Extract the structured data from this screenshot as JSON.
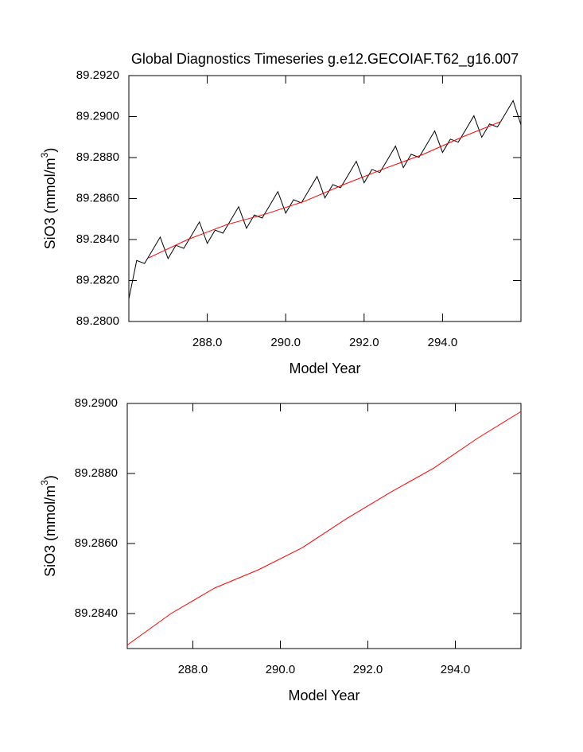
{
  "chart_data": [
    {
      "type": "line",
      "title": "Global Diagnostics Timeseries g.e12.GECOIAF.T62_g16.007",
      "xlabel": "Model Year",
      "ylabel": [
        "SiO3 (mmol/m",
        "3",
        ")"
      ],
      "xlim": [
        286.0,
        296.0
      ],
      "ylim": [
        89.28,
        89.292
      ],
      "xticks": [
        {
          "value": 288,
          "label": "288.0"
        },
        {
          "value": 290,
          "label": "290.0"
        },
        {
          "value": 292,
          "label": "292.0"
        },
        {
          "value": 294,
          "label": "294.0"
        }
      ],
      "yticks": [
        {
          "value": 89.28,
          "label": "89.2800"
        },
        {
          "value": 89.282,
          "label": "89.2820"
        },
        {
          "value": 89.284,
          "label": "89.2840"
        },
        {
          "value": 89.286,
          "label": "89.2860"
        },
        {
          "value": 89.288,
          "label": "89.2880"
        },
        {
          "value": 89.29,
          "label": "89.2900"
        },
        {
          "value": 89.292,
          "label": "89.2920"
        }
      ],
      "series": [
        {
          "color": "#000000",
          "x": [
            286.0,
            286.2,
            286.4,
            286.6,
            286.8,
            287.0,
            287.2,
            287.4,
            287.6,
            287.8,
            288.0,
            288.2,
            288.4,
            288.6,
            288.8,
            289.0,
            289.2,
            289.4,
            289.6,
            289.8,
            290.0,
            290.2,
            290.4,
            290.6,
            290.8,
            291.0,
            291.2,
            291.4,
            291.6,
            291.8,
            292.0,
            292.2,
            292.4,
            292.6,
            292.8,
            293.0,
            293.2,
            293.4,
            293.6,
            293.8,
            294.0,
            294.2,
            294.4,
            294.6,
            294.8,
            295.0,
            295.2,
            295.4,
            295.6,
            295.8,
            296.0
          ],
          "values": [
            89.2811,
            89.28298,
            89.28283,
            89.28347,
            89.28412,
            89.28307,
            89.28372,
            89.28357,
            89.28421,
            89.28486,
            89.28381,
            89.28446,
            89.28431,
            89.28495,
            89.2856,
            89.28455,
            89.2852,
            89.28505,
            89.28569,
            89.28634,
            89.28529,
            89.28594,
            89.28579,
            89.28643,
            89.28708,
            89.28603,
            89.28668,
            89.28653,
            89.28717,
            89.28782,
            89.28677,
            89.28742,
            89.28727,
            89.28791,
            89.28856,
            89.28751,
            89.28816,
            89.28801,
            89.28865,
            89.2893,
            89.28825,
            89.2889,
            89.28875,
            89.28939,
            89.29004,
            89.28899,
            89.28964,
            89.28949,
            89.29013,
            89.29078,
            89.2896
          ]
        },
        {
          "color": "#ff0000",
          "x": [
            286.5,
            287.5,
            288.5,
            289.5,
            290.5,
            291.5,
            292.5,
            293.5,
            294.5,
            295.5
          ],
          "values": [
            89.2831,
            89.284,
            89.28473,
            89.28525,
            89.28588,
            89.2867,
            89.28745,
            89.28815,
            89.289,
            89.28977
          ]
        }
      ]
    },
    {
      "type": "line",
      "xlabel": "Model Year",
      "ylabel": [
        "SiO3 (mmol/m",
        "3",
        ")"
      ],
      "xlim": [
        286.5,
        295.5
      ],
      "ylim": [
        89.283,
        89.29
      ],
      "xticks": [
        {
          "value": 288,
          "label": "288.0"
        },
        {
          "value": 290,
          "label": "290.0"
        },
        {
          "value": 292,
          "label": "292.0"
        },
        {
          "value": 294,
          "label": "294.0"
        }
      ],
      "yticks": [
        {
          "value": 89.284,
          "label": "89.2840"
        },
        {
          "value": 89.286,
          "label": "89.2860"
        },
        {
          "value": 89.288,
          "label": "89.2880"
        },
        {
          "value": 89.29,
          "label": "89.2900"
        }
      ],
      "series": [
        {
          "color": "#ff0000",
          "x": [
            286.5,
            287.5,
            288.5,
            289.5,
            290.5,
            291.5,
            292.5,
            293.5,
            294.5,
            295.5
          ],
          "values": [
            89.2831,
            89.284,
            89.28473,
            89.28525,
            89.28588,
            89.2867,
            89.28745,
            89.28815,
            89.289,
            89.28977
          ]
        }
      ]
    }
  ]
}
